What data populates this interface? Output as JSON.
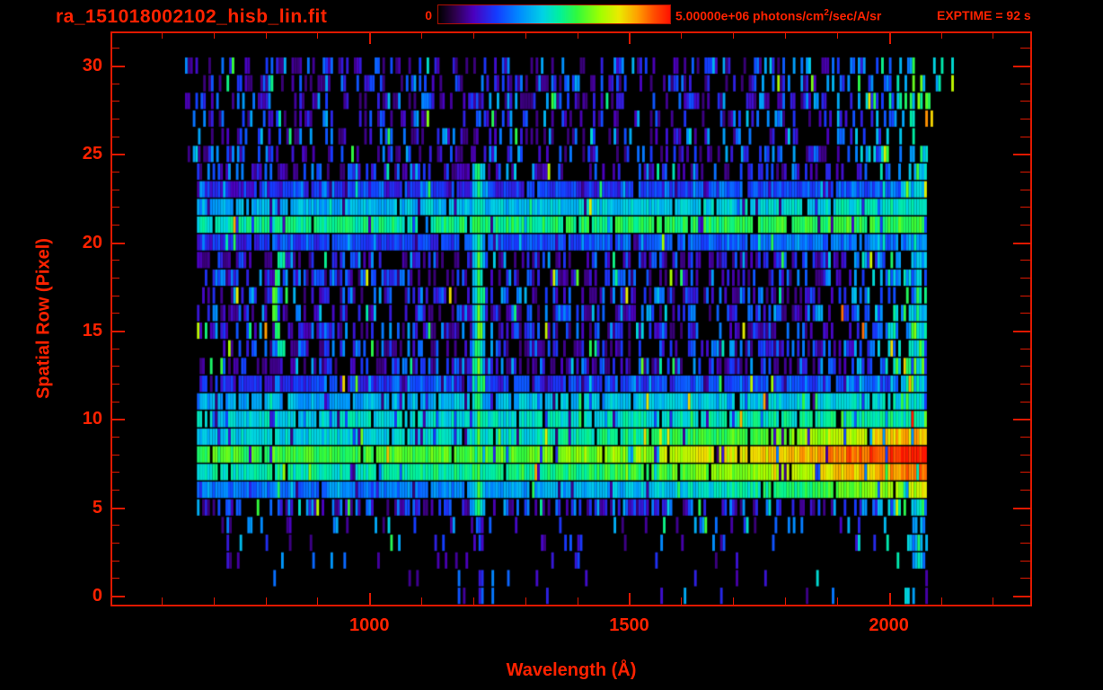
{
  "chart_data": {
    "type": "heatmap",
    "title": "ra_151018002102_hisb_lin.fit",
    "xlabel": "Wavelength (Å)",
    "ylabel": "Spatial Row (Pixel)",
    "x_range": [
      505,
      2272
    ],
    "y_range": [
      -0.5,
      31.83
    ],
    "x_major_ticks": [
      1000,
      1500,
      2000
    ],
    "x_minor_tick_start": 600,
    "x_minor_tick_step": 100,
    "x_minor_tick_end": 2200,
    "y_major_ticks": [
      0,
      5,
      10,
      15,
      20,
      25,
      30
    ],
    "y_minor_tick_step": 1,
    "colorbar": {
      "min_label": "0",
      "max_label_prefix": "5.00000e+06 photons/cm",
      "max_label_sup": "2",
      "max_label_suffix": "/sec/A/sr"
    },
    "exptime_label": "EXPTIME = 92 s",
    "colors": {
      "text": "#ff2200",
      "frame": "#e01800",
      "background": "#000000",
      "colorbar_border": "#b01000"
    },
    "colormap_stops": [
      [
        0.0,
        0,
        0,
        0
      ],
      [
        0.07,
        45,
        0,
        75
      ],
      [
        0.15,
        75,
        0,
        190
      ],
      [
        0.25,
        20,
        60,
        255
      ],
      [
        0.35,
        0,
        140,
        255
      ],
      [
        0.45,
        0,
        210,
        230
      ],
      [
        0.52,
        0,
        240,
        160
      ],
      [
        0.6,
        50,
        250,
        60
      ],
      [
        0.7,
        160,
        255,
        0
      ],
      [
        0.78,
        235,
        235,
        0
      ],
      [
        0.86,
        255,
        160,
        0
      ],
      [
        0.93,
        255,
        80,
        0
      ],
      [
        1.0,
        255,
        20,
        0
      ]
    ],
    "data_model": {
      "seed": 20151018,
      "wl_bin": 5,
      "wl_data_min": 645,
      "wl_data_max": 2070,
      "wl_sparse_max_upper": 2120,
      "wl_start_mid_rows": 668,
      "wl_start_low_rows": 700,
      "n_rows": 31,
      "row_density": [
        0.02,
        0.04,
        0.05,
        0.09,
        0.16,
        0.52,
        0.56,
        0.6,
        0.62,
        0.6,
        0.58,
        0.55,
        0.52,
        0.55,
        0.5,
        0.52,
        0.55,
        0.5,
        0.52,
        0.55,
        0.5,
        0.48,
        0.52,
        0.55,
        0.5,
        0.42,
        0.38,
        0.4,
        0.42,
        0.45,
        0.4
      ],
      "green_boost": {
        "wl_start": 1830,
        "amount": 0.42
      },
      "bands": [
        {
          "rows": {
            "20": 0.08,
            "21": 0.36,
            "22": 0.24,
            "23": 0.05
          },
          "base": 0.14,
          "ramp": 0.1,
          "ramp_pow": 1,
          "fill": 0.88
        },
        {
          "rows": {
            "10": 0.3,
            "11": 0.24,
            "12": 0.06
          },
          "base": 0.14,
          "ramp": 0.08,
          "ramp_pow": 1,
          "fill": 0.82
        },
        {
          "rows": {
            "6": 0.1,
            "7": 0.28,
            "8": 0.38,
            "9": 0.22
          },
          "base": 0.22,
          "ramp": 0.42,
          "ramp_pow": 3,
          "fill": 0.9
        }
      ],
      "vlines": [
        {
          "wl": 1208,
          "halfwidth": 14,
          "row_min": 5,
          "row_max": 24,
          "base": 0.6,
          "fill": 0.97,
          "peak_row_min": 11,
          "peak_row_max": 16,
          "peak": 0.22
        },
        {
          "wl": 1208,
          "halfwidth": 9,
          "row_min": 3,
          "row_max": 4,
          "base": 0.32,
          "fill": 0.75
        },
        {
          "wl": 1306,
          "halfwidth": 7,
          "row_min": 8,
          "row_max": 21,
          "base": 0.3,
          "fill": 0.6
        },
        {
          "wl": 1042,
          "halfwidth": 6,
          "row_min": 12,
          "row_max": 18,
          "base": 0.3,
          "fill": 0.55
        },
        {
          "wl": 2055,
          "halfwidth": 13,
          "row_min": 2,
          "row_max": 24,
          "base": 0.52,
          "fill": 0.9,
          "peak_row_min": 6,
          "peak_row_max": 9,
          "peak": 0.3
        },
        {
          "wl": 1169,
          "halfwidth": 3,
          "row_min": 0,
          "row_max": 1,
          "base": 0.38,
          "fill": 1.0
        },
        {
          "wl": 1213,
          "halfwidth": 3,
          "row_min": 0,
          "row_max": 1,
          "base": 0.4,
          "fill": 1.0
        },
        {
          "wl": 1236,
          "halfwidth": 3,
          "row_min": 0,
          "row_max": 1,
          "base": 0.4,
          "fill": 1.0
        },
        {
          "wl": 2073,
          "halfwidth": 3,
          "row_min": 0,
          "row_max": 1,
          "base": 0.2,
          "fill": 1.0
        }
      ],
      "arc": {
        "wl_center": 816,
        "amp": 12,
        "row_center": 16.5,
        "row_half": 2.6,
        "row_min": 14,
        "row_max": 19,
        "halfwidth": 6,
        "base": 0.48,
        "peak": 0.16
      }
    }
  }
}
